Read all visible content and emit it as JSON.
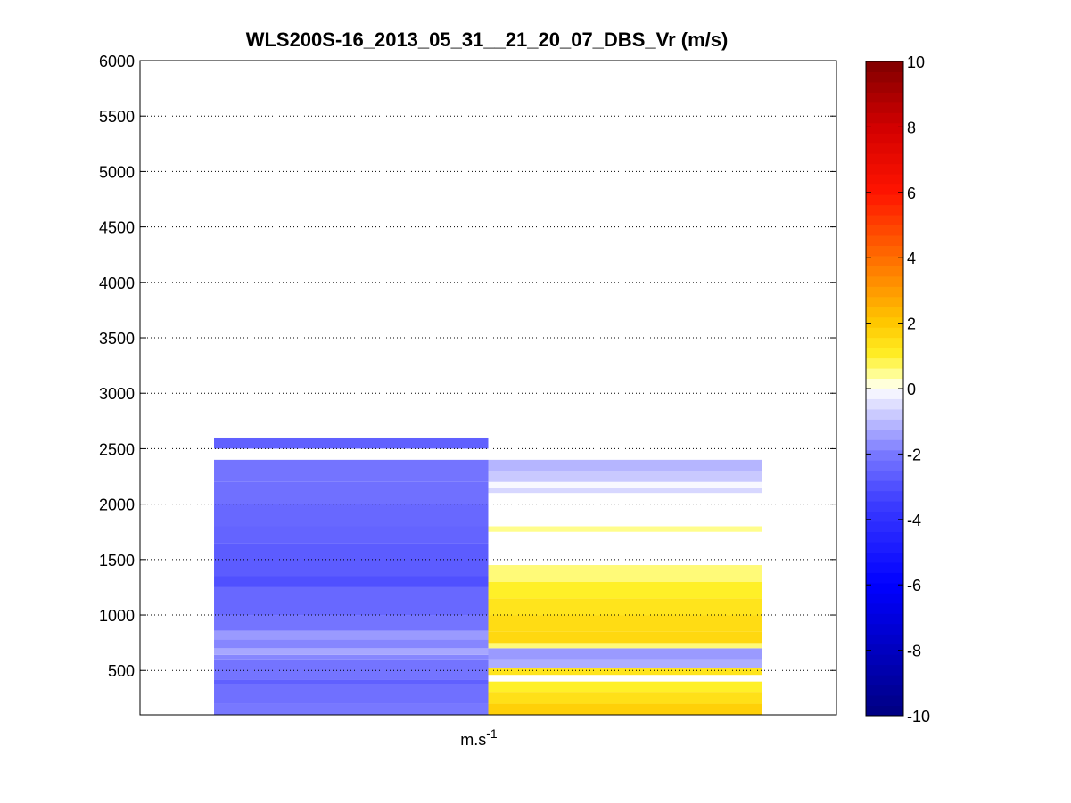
{
  "chart_data": {
    "type": "heatmap",
    "title": "WLS200S-16_2013_05_31__21_20_07_DBS_Vr (m/s)",
    "xlabel_base": "m.s",
    "xlabel_exp": "-1",
    "ylim": [
      100,
      6000
    ],
    "yticks": [
      500,
      1000,
      1500,
      2000,
      2500,
      3000,
      3500,
      4000,
      4500,
      5000,
      5500,
      6000
    ],
    "grid": "horizontal dotted",
    "colorbar": {
      "clim": [
        -10,
        10
      ],
      "ticks": [
        -10,
        -8,
        -6,
        -4,
        -2,
        0,
        2,
        4,
        6,
        8,
        10
      ],
      "placement": "right",
      "colormap": "blue-white-yellow-red"
    },
    "columns": [
      {
        "column": 1,
        "x_range": [
          0.5,
          1.5
        ],
        "layers": [
          {
            "alt": [
              100,
              200
            ],
            "vr": -2.0
          },
          {
            "alt": [
              200,
              380
            ],
            "vr": -2.2
          },
          {
            "alt": [
              380,
              420
            ],
            "vr": -2.6
          },
          {
            "alt": [
              420,
              600
            ],
            "vr": -2.1
          },
          {
            "alt": [
              600,
              640
            ],
            "vr": -1.8
          },
          {
            "alt": [
              640,
              700
            ],
            "vr": -1.3
          },
          {
            "alt": [
              700,
              780
            ],
            "vr": -1.8
          },
          {
            "alt": [
              780,
              860
            ],
            "vr": -1.5
          },
          {
            "alt": [
              860,
              1000
            ],
            "vr": -2.1
          },
          {
            "alt": [
              1000,
              1250
            ],
            "vr": -2.4
          },
          {
            "alt": [
              1250,
              1350
            ],
            "vr": -3.0
          },
          {
            "alt": [
              1350,
              1650
            ],
            "vr": -2.7
          },
          {
            "alt": [
              1650,
              1800
            ],
            "vr": -2.5
          },
          {
            "alt": [
              1800,
              2000
            ],
            "vr": -2.4
          },
          {
            "alt": [
              2000,
              2200
            ],
            "vr": -2.2
          },
          {
            "alt": [
              2200,
              2400
            ],
            "vr": -2.1
          },
          {
            "alt": [
              2500,
              2600
            ],
            "vr": -2.6
          }
        ]
      },
      {
        "column": 2,
        "x_range": [
          1.5,
          2.5
        ],
        "layers": [
          {
            "alt": [
              100,
              200
            ],
            "vr": 1.8
          },
          {
            "alt": [
              200,
              300
            ],
            "vr": 1.4
          },
          {
            "alt": [
              300,
              400
            ],
            "vr": 1.0
          },
          {
            "alt": [
              460,
              520
            ],
            "vr": 1.3
          },
          {
            "alt": [
              520,
              600
            ],
            "vr": -1.2
          },
          {
            "alt": [
              600,
              700
            ],
            "vr": -1.5
          },
          {
            "alt": [
              700,
              740
            ],
            "vr": 0.6
          },
          {
            "alt": [
              740,
              850
            ],
            "vr": 1.6
          },
          {
            "alt": [
              850,
              1000
            ],
            "vr": 1.5
          },
          {
            "alt": [
              1000,
              1150
            ],
            "vr": 1.3
          },
          {
            "alt": [
              1150,
              1300
            ],
            "vr": 1.0
          },
          {
            "alt": [
              1300,
              1450
            ],
            "vr": 0.6
          },
          {
            "alt": [
              1750,
              1800
            ],
            "vr": 0.5
          },
          {
            "alt": [
              2100,
              2150
            ],
            "vr": -0.6
          },
          {
            "alt": [
              2150,
              2200
            ],
            "vr": -0.1
          },
          {
            "alt": [
              2200,
              2300
            ],
            "vr": -0.8
          },
          {
            "alt": [
              2300,
              2400
            ],
            "vr": -1.1
          }
        ]
      }
    ]
  }
}
